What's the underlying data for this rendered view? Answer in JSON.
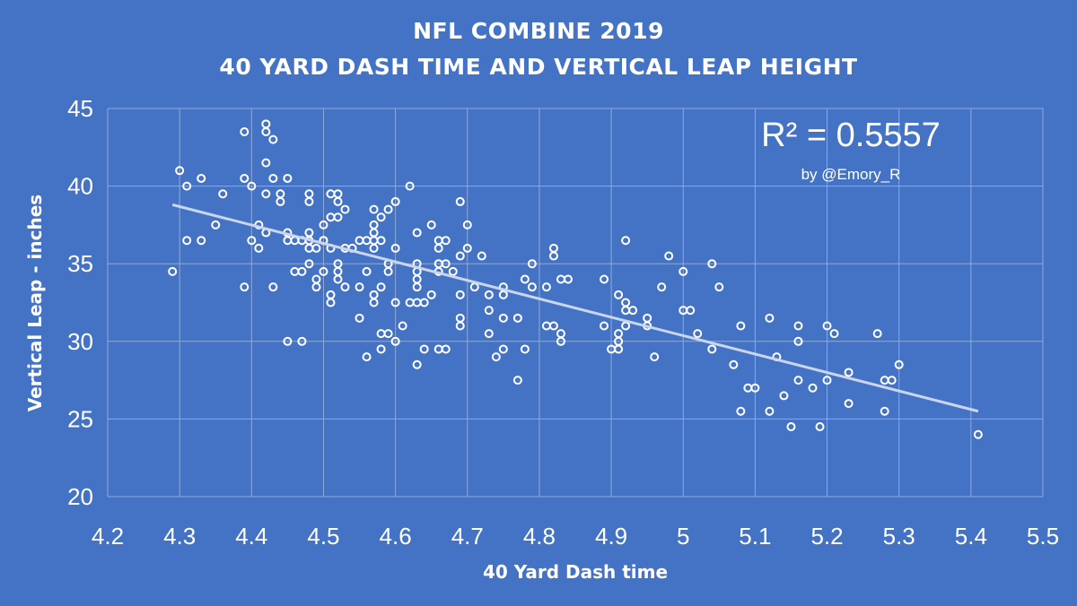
{
  "titles": {
    "line1": "NFL COMBINE 2019",
    "line2": "40 YARD DASH TIME AND VERTICAL LEAP HEIGHT"
  },
  "annotation": {
    "r_squared": "R² = 0.5557",
    "credit": "by @Emory_R"
  },
  "colors": {
    "background": "#4472c4",
    "grid": "#8eaadb",
    "marker": "#ffffff",
    "trendline": "#c9d6ee"
  },
  "chart_data": {
    "type": "scatter",
    "title": "NFL COMBINE 2019 — 40 YARD DASH TIME AND VERTICAL LEAP HEIGHT",
    "xlabel": "40 Yard Dash time",
    "ylabel": "Vertical Leap - inches",
    "xlim": [
      4.2,
      5.5
    ],
    "ylim": [
      20,
      45
    ],
    "x_ticks": [
      "4.2",
      "4.3",
      "4.4",
      "4.5",
      "4.6",
      "4.7",
      "4.8",
      "4.9",
      "5",
      "5.1",
      "5.2",
      "5.3",
      "5.4",
      "5.5"
    ],
    "y_ticks": [
      "20",
      "25",
      "30",
      "35",
      "40",
      "45"
    ],
    "grid": true,
    "trendline": {
      "type": "linear",
      "from": [
        4.29,
        38.8
      ],
      "to": [
        5.41,
        25.5
      ],
      "r_squared": 0.5557
    },
    "points": [
      [
        4.29,
        34.5
      ],
      [
        4.3,
        41.0
      ],
      [
        4.31,
        40.0
      ],
      [
        4.31,
        36.5
      ],
      [
        4.33,
        40.5
      ],
      [
        4.33,
        36.5
      ],
      [
        4.35,
        37.5
      ],
      [
        4.36,
        39.5
      ],
      [
        4.39,
        43.5
      ],
      [
        4.39,
        40.5
      ],
      [
        4.39,
        33.5
      ],
      [
        4.4,
        40.0
      ],
      [
        4.4,
        36.5
      ],
      [
        4.41,
        37.5
      ],
      [
        4.41,
        36.0
      ],
      [
        4.42,
        44.0
      ],
      [
        4.42,
        43.5
      ],
      [
        4.42,
        41.5
      ],
      [
        4.42,
        39.5
      ],
      [
        4.42,
        37.0
      ],
      [
        4.43,
        43.0
      ],
      [
        4.43,
        40.5
      ],
      [
        4.43,
        33.5
      ],
      [
        4.44,
        39.5
      ],
      [
        4.44,
        39.0
      ],
      [
        4.45,
        40.5
      ],
      [
        4.45,
        37.0
      ],
      [
        4.45,
        36.5
      ],
      [
        4.45,
        30.0
      ],
      [
        4.46,
        36.5
      ],
      [
        4.46,
        34.5
      ],
      [
        4.47,
        36.5
      ],
      [
        4.47,
        34.5
      ],
      [
        4.47,
        30.0
      ],
      [
        4.48,
        39.5
      ],
      [
        4.48,
        39.0
      ],
      [
        4.48,
        37.0
      ],
      [
        4.48,
        36.5
      ],
      [
        4.48,
        36.0
      ],
      [
        4.48,
        35.0
      ],
      [
        4.49,
        36.0
      ],
      [
        4.49,
        34.0
      ],
      [
        4.49,
        33.5
      ],
      [
        4.5,
        37.5
      ],
      [
        4.5,
        36.5
      ],
      [
        4.5,
        34.5
      ],
      [
        4.5,
        36.5
      ],
      [
        4.51,
        39.5
      ],
      [
        4.51,
        38.0
      ],
      [
        4.51,
        36.0
      ],
      [
        4.51,
        33.0
      ],
      [
        4.51,
        32.5
      ],
      [
        4.52,
        39.5
      ],
      [
        4.52,
        39.0
      ],
      [
        4.52,
        38.0
      ],
      [
        4.52,
        35.0
      ],
      [
        4.52,
        34.5
      ],
      [
        4.52,
        34.0
      ],
      [
        4.53,
        38.5
      ],
      [
        4.53,
        36.0
      ],
      [
        4.53,
        33.5
      ],
      [
        4.54,
        36.0
      ],
      [
        4.55,
        36.5
      ],
      [
        4.55,
        33.5
      ],
      [
        4.55,
        31.5
      ],
      [
        4.56,
        36.5
      ],
      [
        4.56,
        34.5
      ],
      [
        4.56,
        29.0
      ],
      [
        4.57,
        38.5
      ],
      [
        4.57,
        37.5
      ],
      [
        4.57,
        37.0
      ],
      [
        4.57,
        36.5
      ],
      [
        4.57,
        36.0
      ],
      [
        4.57,
        33.0
      ],
      [
        4.57,
        32.5
      ],
      [
        4.58,
        38.0
      ],
      [
        4.58,
        36.5
      ],
      [
        4.58,
        33.5
      ],
      [
        4.58,
        30.5
      ],
      [
        4.58,
        29.5
      ],
      [
        4.59,
        38.5
      ],
      [
        4.59,
        35.0
      ],
      [
        4.59,
        34.5
      ],
      [
        4.59,
        30.5
      ],
      [
        4.6,
        39.0
      ],
      [
        4.6,
        36.0
      ],
      [
        4.6,
        32.5
      ],
      [
        4.6,
        30.0
      ],
      [
        4.61,
        31.0
      ],
      [
        4.62,
        40.0
      ],
      [
        4.62,
        32.5
      ],
      [
        4.63,
        37.0
      ],
      [
        4.63,
        35.0
      ],
      [
        4.63,
        34.5
      ],
      [
        4.63,
        34.0
      ],
      [
        4.63,
        33.5
      ],
      [
        4.63,
        32.5
      ],
      [
        4.63,
        28.5
      ],
      [
        4.64,
        32.5
      ],
      [
        4.64,
        29.5
      ],
      [
        4.65,
        37.5
      ],
      [
        4.65,
        33.0
      ],
      [
        4.66,
        36.5
      ],
      [
        4.66,
        36.0
      ],
      [
        4.66,
        35.0
      ],
      [
        4.66,
        34.5
      ],
      [
        4.66,
        29.5
      ],
      [
        4.67,
        36.5
      ],
      [
        4.67,
        35.0
      ],
      [
        4.67,
        29.5
      ],
      [
        4.68,
        34.5
      ],
      [
        4.69,
        39.0
      ],
      [
        4.69,
        35.5
      ],
      [
        4.69,
        33.0
      ],
      [
        4.69,
        31.5
      ],
      [
        4.69,
        31.0
      ],
      [
        4.7,
        37.5
      ],
      [
        4.7,
        36.0
      ],
      [
        4.71,
        33.5
      ],
      [
        4.72,
        35.5
      ],
      [
        4.73,
        33.0
      ],
      [
        4.73,
        32.0
      ],
      [
        4.73,
        30.5
      ],
      [
        4.74,
        29.0
      ],
      [
        4.75,
        33.5
      ],
      [
        4.75,
        33.0
      ],
      [
        4.75,
        31.5
      ],
      [
        4.75,
        29.5
      ],
      [
        4.77,
        31.5
      ],
      [
        4.77,
        27.5
      ],
      [
        4.78,
        34.0
      ],
      [
        4.78,
        29.5
      ],
      [
        4.79,
        35.0
      ],
      [
        4.79,
        33.5
      ],
      [
        4.81,
        33.5
      ],
      [
        4.81,
        31.0
      ],
      [
        4.82,
        36.0
      ],
      [
        4.82,
        35.5
      ],
      [
        4.82,
        31.0
      ],
      [
        4.83,
        34.0
      ],
      [
        4.83,
        30.5
      ],
      [
        4.83,
        30.0
      ],
      [
        4.84,
        34.0
      ],
      [
        4.89,
        34.0
      ],
      [
        4.89,
        31.0
      ],
      [
        4.9,
        29.5
      ],
      [
        4.91,
        33.0
      ],
      [
        4.91,
        30.5
      ],
      [
        4.91,
        30.0
      ],
      [
        4.91,
        29.5
      ],
      [
        4.92,
        36.5
      ],
      [
        4.92,
        32.5
      ],
      [
        4.92,
        32.0
      ],
      [
        4.92,
        31.0
      ],
      [
        4.93,
        32.0
      ],
      [
        4.95,
        31.5
      ],
      [
        4.95,
        31.0
      ],
      [
        4.96,
        29.0
      ],
      [
        4.97,
        33.5
      ],
      [
        4.98,
        35.5
      ],
      [
        5.0,
        34.5
      ],
      [
        5.0,
        32.0
      ],
      [
        5.01,
        32.0
      ],
      [
        5.02,
        30.5
      ],
      [
        5.04,
        35.0
      ],
      [
        5.04,
        29.5
      ],
      [
        5.05,
        33.5
      ],
      [
        5.07,
        28.5
      ],
      [
        5.08,
        31.0
      ],
      [
        5.08,
        25.5
      ],
      [
        5.09,
        27.0
      ],
      [
        5.1,
        27.0
      ],
      [
        5.12,
        31.5
      ],
      [
        5.12,
        25.5
      ],
      [
        5.13,
        29.0
      ],
      [
        5.14,
        26.5
      ],
      [
        5.15,
        24.5
      ],
      [
        5.16,
        31.0
      ],
      [
        5.16,
        30.0
      ],
      [
        5.16,
        27.5
      ],
      [
        5.18,
        27.0
      ],
      [
        5.19,
        24.5
      ],
      [
        5.2,
        31.0
      ],
      [
        5.2,
        27.5
      ],
      [
        5.21,
        30.5
      ],
      [
        5.23,
        28.0
      ],
      [
        5.23,
        26.0
      ],
      [
        5.27,
        30.5
      ],
      [
        5.28,
        27.5
      ],
      [
        5.28,
        25.5
      ],
      [
        5.29,
        27.5
      ],
      [
        5.3,
        28.5
      ],
      [
        5.41,
        24.0
      ]
    ]
  }
}
